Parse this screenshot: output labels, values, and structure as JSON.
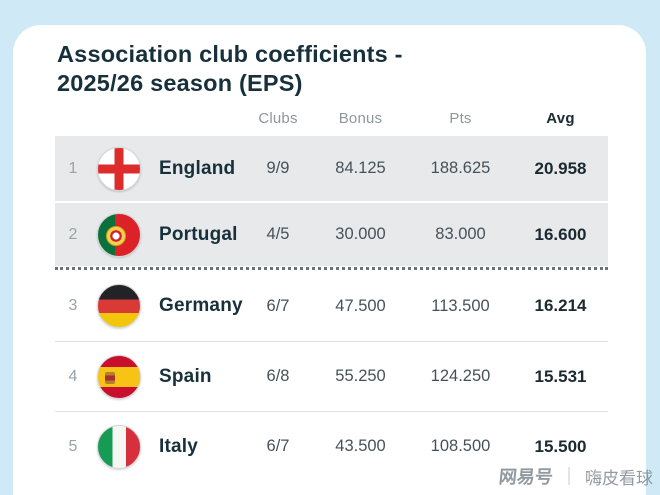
{
  "title": {
    "line1": "Association club coefficients -",
    "line2": "2025/26 season (EPS)"
  },
  "chart_data": {
    "type": "table",
    "title": "Association club coefficients - 2025/26 season (EPS)",
    "column_headers": [
      "Clubs",
      "Bonus",
      "Pts",
      "Avg"
    ],
    "rows": [
      {
        "rank": "1",
        "country": "England",
        "flag": "england",
        "clubs": "9/9",
        "bonus": "84.125",
        "pts": "188.625",
        "avg": "20.958",
        "highlighted": true,
        "divider_after": false
      },
      {
        "rank": "2",
        "country": "Portugal",
        "flag": "portugal",
        "clubs": "4/5",
        "bonus": "30.000",
        "pts": "83.000",
        "avg": "16.600",
        "highlighted": true,
        "divider_after": true
      },
      {
        "rank": "3",
        "country": "Germany",
        "flag": "germany",
        "clubs": "6/7",
        "bonus": "47.500",
        "pts": "113.500",
        "avg": "16.214",
        "highlighted": false,
        "divider_after": false
      },
      {
        "rank": "4",
        "country": "Spain",
        "flag": "spain",
        "clubs": "6/8",
        "bonus": "55.250",
        "pts": "124.250",
        "avg": "15.531",
        "highlighted": false,
        "divider_after": false
      },
      {
        "rank": "5",
        "country": "Italy",
        "flag": "italy",
        "clubs": "6/7",
        "bonus": "43.500",
        "pts": "108.500",
        "avg": "15.500",
        "highlighted": false,
        "divider_after": false
      }
    ]
  },
  "watermark": {
    "brand": "网易号",
    "divider": "｜",
    "account": "嗨皮看球"
  },
  "colors": {
    "page_background": "#cfe9f7",
    "card_background": "#ffffff",
    "title_text": "#17303c",
    "header_text": "#8d979e",
    "row_highlight": "#e7e9ea",
    "value_text": "#46525a"
  }
}
